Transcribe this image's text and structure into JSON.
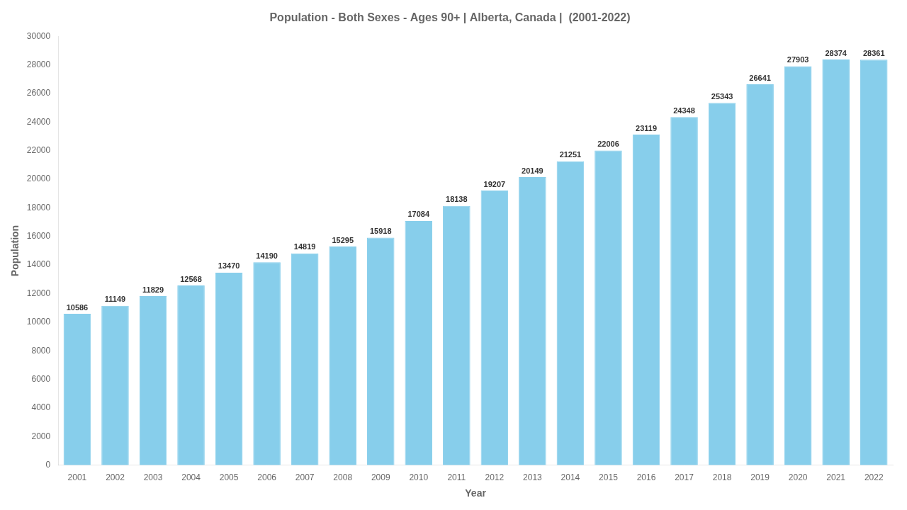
{
  "chart_data": {
    "type": "bar",
    "title": "Population - Both Sexes - Ages 90+ | Alberta, Canada |  (2001-2022)",
    "x_label": "Year",
    "y_label": "Population",
    "categories": [
      "2001",
      "2002",
      "2003",
      "2004",
      "2005",
      "2006",
      "2007",
      "2008",
      "2009",
      "2010",
      "2011",
      "2012",
      "2013",
      "2014",
      "2015",
      "2016",
      "2017",
      "2018",
      "2019",
      "2020",
      "2021",
      "2022"
    ],
    "values": [
      10586,
      11149,
      11829,
      12568,
      13470,
      14190,
      14819,
      15295,
      15918,
      17084,
      18138,
      19207,
      20149,
      21251,
      22006,
      23119,
      24348,
      25343,
      26641,
      27903,
      28374,
      28361
    ],
    "color": "#87CEEB",
    "ylim": [
      0,
      30000
    ],
    "yticks": [
      0,
      2000,
      4000,
      6000,
      8000,
      10000,
      12000,
      14000,
      16000,
      18000,
      20000,
      22000,
      24000,
      26000,
      28000,
      30000
    ],
    "grid": false,
    "data_labels": true
  }
}
